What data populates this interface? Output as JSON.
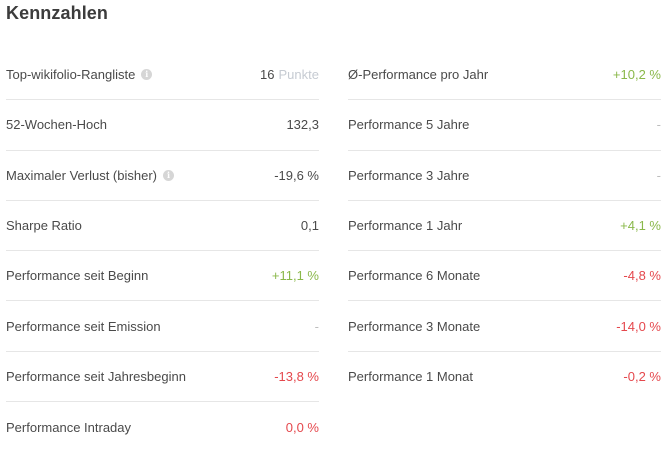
{
  "title": "Kennzahlen",
  "colors": {
    "positive": "#8ab84a",
    "negative": "#e5484d",
    "neutral": "#4a4a4a",
    "muted": "#bdbdbd"
  },
  "left": [
    {
      "label": "Top-wikifolio-Rangliste",
      "info": true,
      "value": "16",
      "unit": "Punkte",
      "tone": "neutral"
    },
    {
      "label": "52-Wochen-Hoch",
      "info": false,
      "value": "132,3",
      "tone": "neutral"
    },
    {
      "label": "Maximaler Verlust (bisher)",
      "info": true,
      "value": "-19,6 %",
      "tone": "neutral"
    },
    {
      "label": "Sharpe Ratio",
      "info": false,
      "value": "0,1",
      "tone": "neutral"
    },
    {
      "label": "Performance seit Beginn",
      "info": false,
      "value": "+11,1 %",
      "tone": "pos"
    },
    {
      "label": "Performance seit Emission",
      "info": false,
      "value": "-",
      "tone": "dash"
    },
    {
      "label": "Performance seit Jahresbeginn",
      "info": false,
      "value": "-13,8 %",
      "tone": "neg"
    },
    {
      "label": "Performance Intraday",
      "info": false,
      "value": "0,0 %",
      "tone": "neg"
    }
  ],
  "right": [
    {
      "label": "Ø-Performance pro Jahr",
      "info": false,
      "value": "+10,2 %",
      "tone": "pos"
    },
    {
      "label": "Performance 5 Jahre",
      "info": false,
      "value": "-",
      "tone": "dash"
    },
    {
      "label": "Performance 3 Jahre",
      "info": false,
      "value": "-",
      "tone": "dash"
    },
    {
      "label": "Performance 1 Jahr",
      "info": false,
      "value": "+4,1 %",
      "tone": "pos"
    },
    {
      "label": "Performance 6 Monate",
      "info": false,
      "value": "-4,8 %",
      "tone": "neg"
    },
    {
      "label": "Performance 3 Monate",
      "info": false,
      "value": "-14,0 %",
      "tone": "neg"
    },
    {
      "label": "Performance 1 Monat",
      "info": false,
      "value": "-0,2 %",
      "tone": "neg"
    }
  ],
  "info_icon_glyph": "i"
}
